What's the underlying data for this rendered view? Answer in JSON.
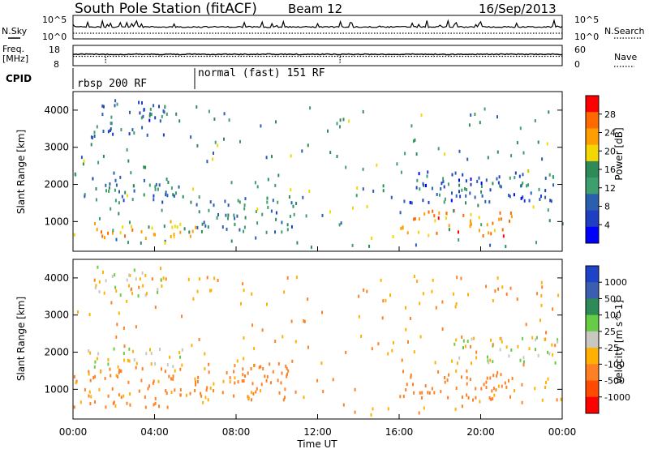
{
  "header": {
    "title": "South Pole Station (fitACF)",
    "beam": "Beam 12",
    "date": "16/Sep/2013"
  },
  "noise_panel": {
    "left_label": "N.Sky",
    "right_label": "N.Search",
    "left_ticks": [
      "10^5",
      "10^0"
    ],
    "right_ticks": [
      "10^5",
      "10^0"
    ]
  },
  "freq_panel": {
    "left_label_line1": "Freq.",
    "left_label_line2": "[MHz]",
    "right_label": "Nave",
    "left_ticks": [
      "18",
      "8"
    ],
    "right_ticks": [
      "60",
      "0"
    ]
  },
  "cpid_panel": {
    "label": "CPID",
    "segments": [
      {
        "start_hour": 0,
        "text": "rbsp 200 RF"
      },
      {
        "start_hour": 6,
        "text": "normal (fast) 151 RF"
      }
    ]
  },
  "power_panel": {
    "ylabel": "Slant Range [km]",
    "yticks": [
      "4000",
      "3000",
      "2000",
      "1000"
    ],
    "colorbar": {
      "label": "Power [dB]",
      "ticks": [
        "28",
        "24",
        "20",
        "16",
        "12",
        "8",
        "4"
      ],
      "colors": [
        "#ff0000",
        "#ff6a00",
        "#ff9e00",
        "#f2d800",
        "#2e8b57",
        "#3e9e6e",
        "#2a5fb0",
        "#1f3fc2",
        "#0000ff"
      ]
    }
  },
  "velocity_panel": {
    "ylabel": "Slant Range [km]",
    "yticks": [
      "4000",
      "3000",
      "2000",
      "1000"
    ],
    "colorbar": {
      "label": "Velocity [m s^-1]",
      "ticks": [
        "1000",
        "500",
        "100",
        "25",
        "-25",
        "-100",
        "-500",
        "-1000"
      ],
      "colors": [
        "#1d43c9",
        "#3a5fb0",
        "#2e8b57",
        "#66cc44",
        "#c8c8c0",
        "#ffb000",
        "#ff7f24",
        "#ff4a00",
        "#ff0000"
      ]
    }
  },
  "time_axis": {
    "label": "Time UT",
    "ticks": [
      "00:00",
      "04:00",
      "08:00",
      "12:00",
      "16:00",
      "20:00",
      "00:00"
    ]
  },
  "chart_data": [
    {
      "type": "heatmap",
      "title": "Power",
      "xlabel": "Time UT",
      "ylabel": "Slant Range [km]",
      "x_range_hours": [
        0,
        24
      ],
      "ylim": [
        200,
        4500
      ],
      "colorbar_label": "Power [dB]",
      "colorbar_ticks": [
        28,
        24,
        20,
        16,
        12,
        8,
        4
      ],
      "echo_bands": [
        {
          "t_start": 0.0,
          "t_end": 6.0,
          "range_low": 500,
          "range_high": 1000,
          "power_db": 20
        },
        {
          "t_start": 0.5,
          "t_end": 5.5,
          "range_low": 1500,
          "range_high": 2200,
          "power_db": 8
        },
        {
          "t_start": 1.0,
          "t_end": 4.5,
          "range_low": 3300,
          "range_high": 4300,
          "power_db": 6
        },
        {
          "t_start": 6.0,
          "t_end": 11.0,
          "range_low": 700,
          "range_high": 1700,
          "power_db": 10
        },
        {
          "t_start": 16.0,
          "t_end": 21.5,
          "range_low": 600,
          "range_high": 1300,
          "power_db": 22
        },
        {
          "t_start": 16.5,
          "t_end": 24.0,
          "range_low": 1500,
          "range_high": 2400,
          "power_db": 6
        }
      ]
    },
    {
      "type": "heatmap",
      "title": "Velocity",
      "xlabel": "Time UT",
      "ylabel": "Slant Range [km]",
      "x_range_hours": [
        0,
        24
      ],
      "ylim": [
        200,
        4500
      ],
      "colorbar_label": "Velocity [m s^-1]",
      "colorbar_ticks": [
        1000,
        500,
        100,
        25,
        -25,
        -100,
        -500,
        -1000
      ],
      "echo_bands": [
        {
          "t_start": 0.0,
          "t_end": 6.0,
          "range_low": 500,
          "range_high": 1600,
          "velocity": -150
        },
        {
          "t_start": 0.5,
          "t_end": 5.5,
          "range_low": 1600,
          "range_high": 2100,
          "velocity": 0
        },
        {
          "t_start": 1.0,
          "t_end": 4.5,
          "range_low": 3500,
          "range_high": 4300,
          "velocity": 0
        },
        {
          "t_start": 6.0,
          "t_end": 11.0,
          "range_low": 700,
          "range_high": 1700,
          "velocity": -150
        },
        {
          "t_start": 16.0,
          "t_end": 22.0,
          "range_low": 700,
          "range_high": 1500,
          "velocity": -200
        },
        {
          "t_start": 18.5,
          "t_end": 24.0,
          "range_low": 1700,
          "range_high": 2400,
          "velocity": 0
        }
      ]
    }
  ]
}
